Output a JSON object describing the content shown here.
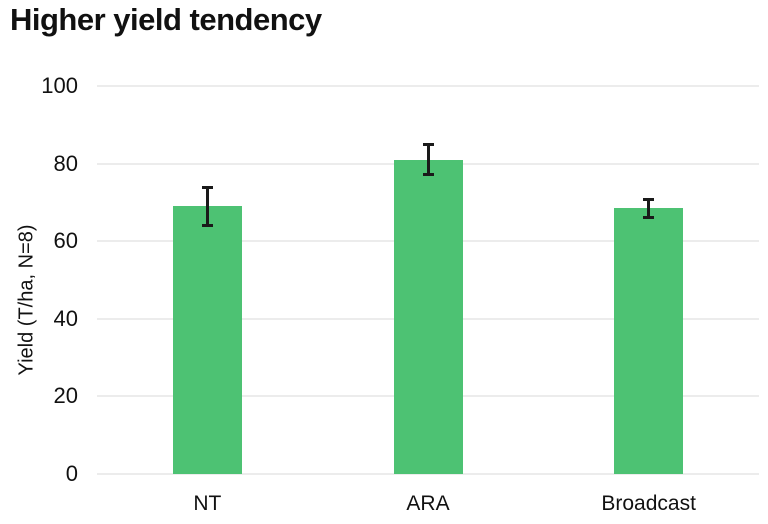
{
  "chart_data": {
    "type": "bar",
    "title": "Higher yield tendency",
    "categories": [
      "NT",
      "ARA",
      "Broadcast"
    ],
    "values": [
      69,
      81,
      68.5
    ],
    "errors": [
      5,
      4,
      2.5
    ],
    "xlabel": "",
    "ylabel": "Yield (T/ha, N=8)",
    "ylim": [
      0,
      100
    ],
    "yticks": [
      0,
      20,
      40,
      60,
      80,
      100
    ],
    "grid": true,
    "legend": false,
    "bar_color": "#4DC273",
    "error_color": "#1a1a1a",
    "grid_color": "#ececec",
    "background": "#ffffff"
  }
}
